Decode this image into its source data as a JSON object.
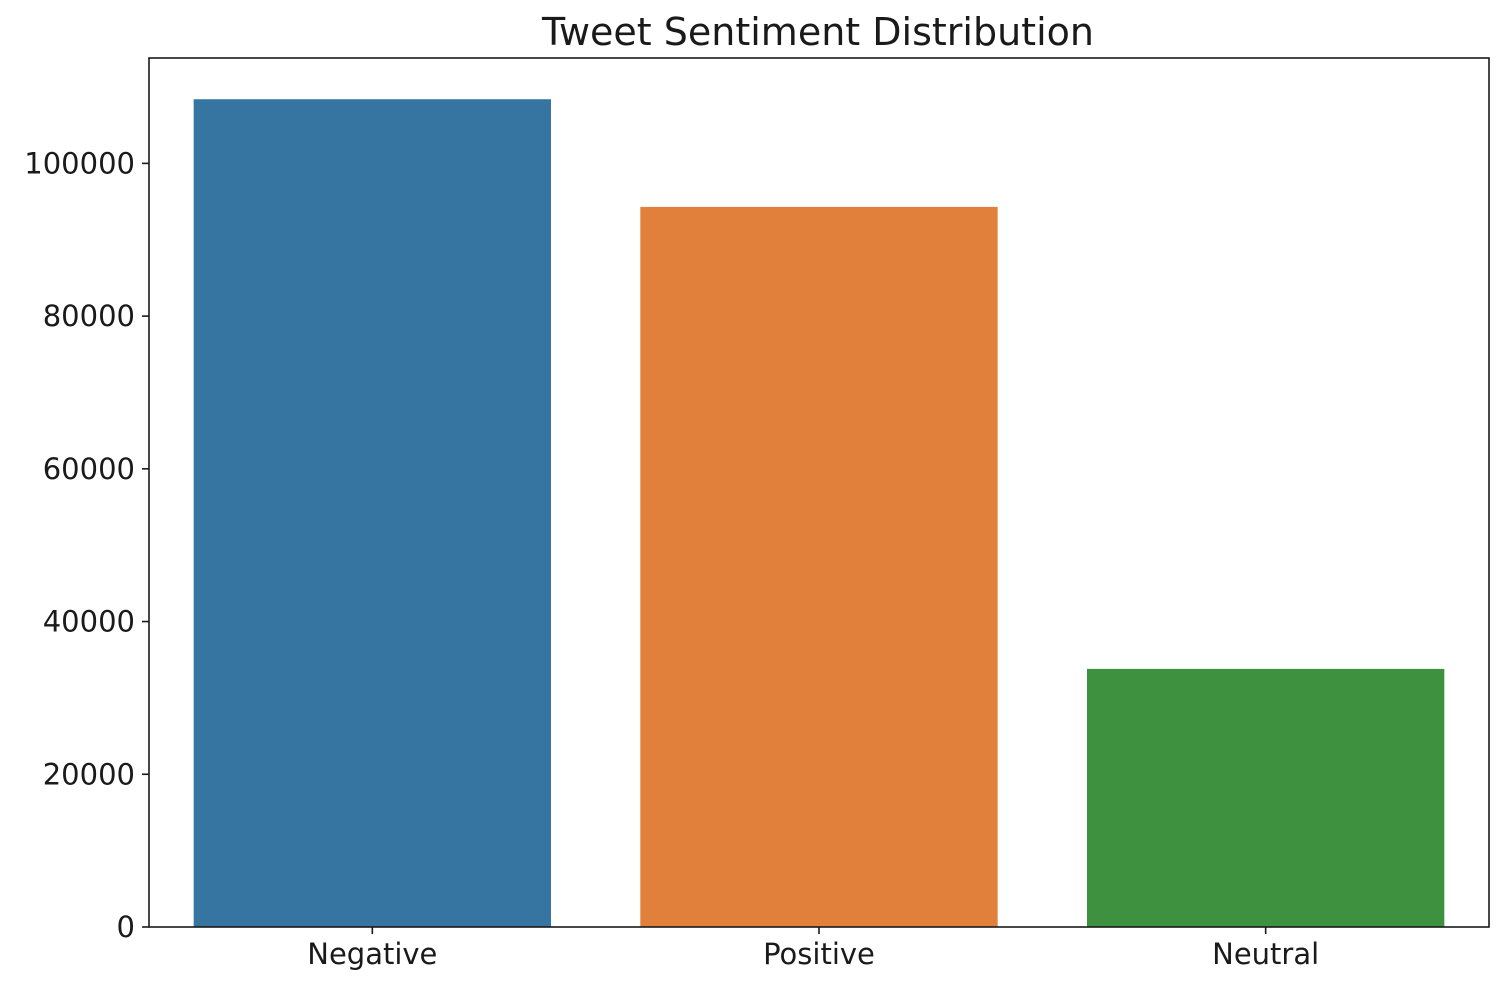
{
  "chart_data": {
    "type": "bar",
    "title": "Tweet Sentiment Distribution",
    "xlabel": "",
    "ylabel": "",
    "categories": [
      "Negative",
      "Positive",
      "Neutral"
    ],
    "values": [
      108400,
      94300,
      33800
    ],
    "colors": [
      "#3674a1",
      "#e1803a",
      "#3e913f"
    ],
    "ylim": [
      0,
      113800
    ],
    "yticks": [
      0,
      20000,
      40000,
      60000,
      80000,
      100000
    ],
    "ytick_labels": [
      "0",
      "20000",
      "40000",
      "60000",
      "80000",
      "100000"
    ],
    "grid": false,
    "legend": "none"
  }
}
